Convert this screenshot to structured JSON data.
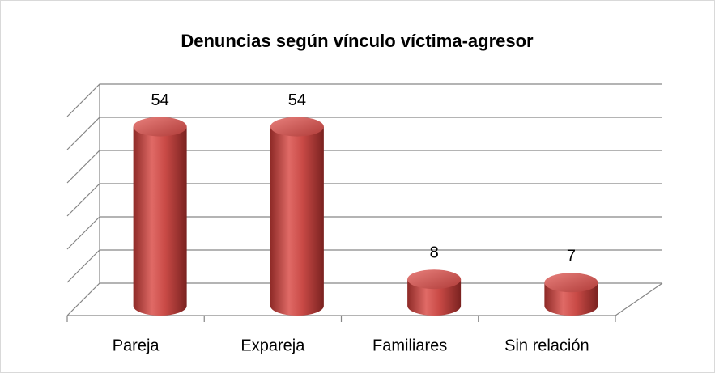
{
  "chart_data": {
    "type": "bar",
    "title": "Denuncias según vínculo víctima-agresor",
    "categories": [
      "Pareja",
      "Expareja",
      "Familiares",
      "Sin relación"
    ],
    "values": [
      54,
      54,
      8,
      7
    ],
    "color": "#c0504d",
    "ylim": [
      0,
      60
    ],
    "yticks": [
      0,
      10,
      20,
      30,
      40,
      50,
      60
    ],
    "grid": true
  }
}
